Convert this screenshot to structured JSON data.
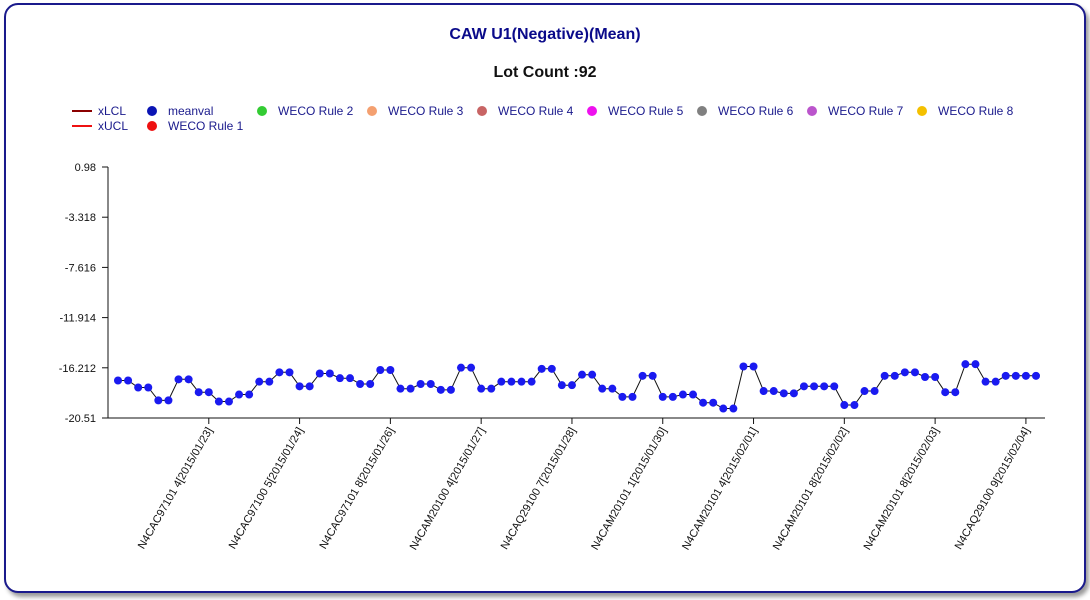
{
  "chart_data": {
    "type": "line",
    "title": "CAW U1(Negative)(Mean)",
    "subtitle": "Lot Count :92",
    "legend": [
      {
        "label": "xLCL",
        "kind": "line",
        "color": "#8b0000"
      },
      {
        "label": "xUCL",
        "kind": "line",
        "color": "#ee1111"
      },
      {
        "label": "meanval",
        "kind": "dot",
        "color": "#0a14b4"
      },
      {
        "label": "WECO Rule 1",
        "kind": "dot",
        "color": "#ee1111"
      },
      {
        "label": "WECO Rule 2",
        "kind": "dot",
        "color": "#33cc33"
      },
      {
        "label": "WECO Rule 3",
        "kind": "dot",
        "color": "#f4a070"
      },
      {
        "label": "WECO Rule 4",
        "kind": "dot",
        "color": "#c86464"
      },
      {
        "label": "WECO Rule 5",
        "kind": "dot",
        "color": "#ee11ee"
      },
      {
        "label": "WECO Rule 6",
        "kind": "dot",
        "color": "#808080"
      },
      {
        "label": "WECO Rule 7",
        "kind": "dot",
        "color": "#bb55cc"
      },
      {
        "label": "WECO Rule 8",
        "kind": "dot",
        "color": "#f4c000"
      }
    ],
    "yticks": [
      "0.98",
      "-3.318",
      "-7.616",
      "-11.914",
      "-16.212",
      "-20.51"
    ],
    "ylim": [
      -20.51,
      0.98
    ],
    "xticks": [
      "N4CAC97101 4[2015/01/23]",
      "N4CAC97100 5[2015/01/24]",
      "N4CAC97101 8[2015/01/26]",
      "N4CAM20100 4[2015/01/27]",
      "N4CAQ29100 7[2015/01/28]",
      "N4CAM20101 1[2015/01/30]",
      "N4CAM20101 4[2015/02/01]",
      "N4CAM20101 8[2015/02/02]",
      "N4CAM20101 8[2015/02/03]",
      "N4CAQ29100 9[2015/02/04]"
    ],
    "xtick_index": [
      9,
      18,
      27,
      36,
      45,
      54,
      63,
      72,
      81,
      90
    ],
    "series": [
      {
        "name": "meanval",
        "color": "#0a14b4",
        "values": [
          -17.3,
          -17.3,
          -17.9,
          -17.9,
          -19.0,
          -19.0,
          -17.2,
          -17.2,
          -18.3,
          -18.3,
          -19.1,
          -19.1,
          -18.5,
          -18.5,
          -17.4,
          -17.4,
          -16.6,
          -16.6,
          -17.8,
          -17.8,
          -16.7,
          -16.7,
          -17.1,
          -17.1,
          -17.6,
          -17.6,
          -16.4,
          -16.4,
          -18.0,
          -18.0,
          -17.6,
          -17.6,
          -18.1,
          -18.1,
          -16.2,
          -16.2,
          -18.0,
          -18.0,
          -17.4,
          -17.4,
          -17.4,
          -17.4,
          -16.3,
          -16.3,
          -17.7,
          -17.7,
          -16.8,
          -16.8,
          -18.0,
          -18.0,
          -18.7,
          -18.7,
          -16.9,
          -16.9,
          -18.7,
          -18.7,
          -18.5,
          -18.5,
          -19.2,
          -19.2,
          -19.7,
          -19.7,
          -16.1,
          -16.1,
          -18.2,
          -18.2,
          -18.4,
          -18.4,
          -17.8,
          -17.8,
          -17.8,
          -17.8,
          -19.4,
          -19.4,
          -18.2,
          -18.2,
          -16.9,
          -16.9,
          -16.6,
          -16.6,
          -17.0,
          -17.0,
          -18.3,
          -18.3,
          -15.9,
          -15.9,
          -17.4,
          -17.4,
          -16.9,
          -16.9,
          -16.9,
          -16.9
        ]
      }
    ]
  }
}
